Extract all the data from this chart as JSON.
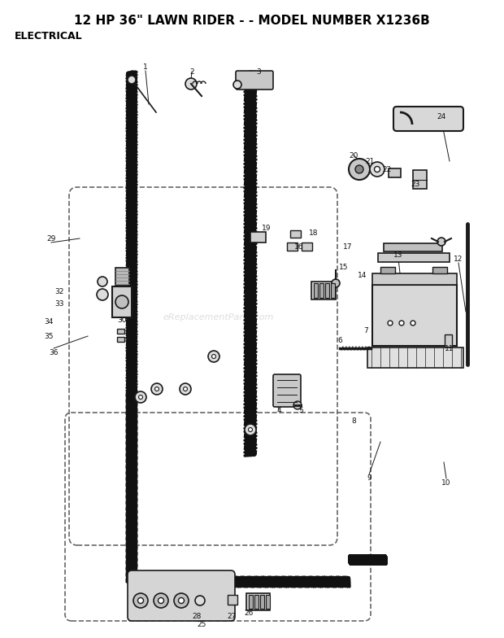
{
  "title": "12 HP 36\" LAWN RIDER - - MODEL NUMBER X1236B",
  "subtitle": "ELECTRICAL",
  "bg_color": "#ffffff",
  "title_fontsize": 11,
  "subtitle_fontsize": 9
}
